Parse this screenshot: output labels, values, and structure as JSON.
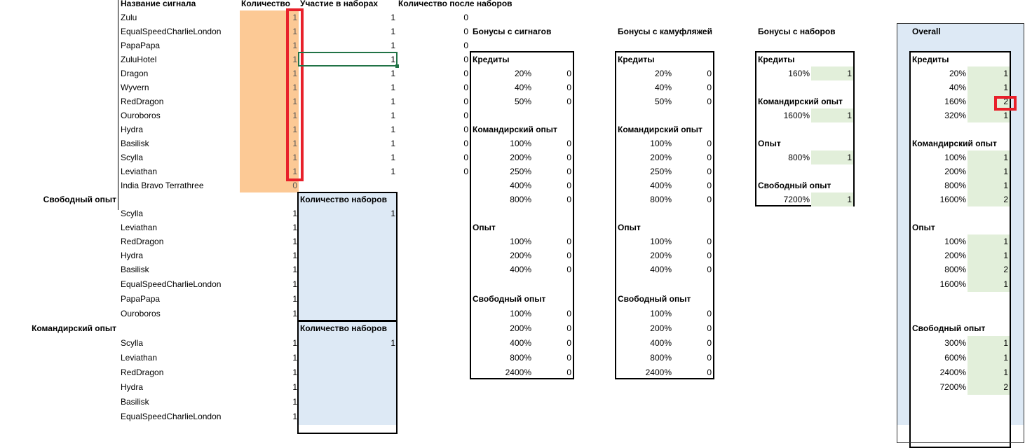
{
  "colors": {
    "orange_fill": "#fcc995",
    "blue_fill": "#dde9f5",
    "green_fill": "#e2efda",
    "highlight_red": "#e8202a",
    "selection_green": "#217346"
  },
  "signals": {
    "headers": {
      "name": "Название сигнала",
      "qty": "Количество",
      "participation": "Участие в наборах",
      "after": "Количество после наборов"
    },
    "rows": [
      {
        "name": "Zulu",
        "qty": "1",
        "participation": "1",
        "after": "0"
      },
      {
        "name": "EqualSpeedCharlieLondon",
        "qty": "1",
        "participation": "1",
        "after": "0"
      },
      {
        "name": "PapaPapa",
        "qty": "1",
        "participation": "1",
        "after": "0"
      },
      {
        "name": "ZuluHotel",
        "qty": "1",
        "participation": "1",
        "after": "0"
      },
      {
        "name": "Dragon",
        "qty": "1",
        "participation": "1",
        "after": "0"
      },
      {
        "name": "Wyvern",
        "qty": "1",
        "participation": "1",
        "after": "0"
      },
      {
        "name": "RedDragon",
        "qty": "1",
        "participation": "1",
        "after": "0"
      },
      {
        "name": "Ouroboros",
        "qty": "1",
        "participation": "1",
        "after": "0"
      },
      {
        "name": "Hydra",
        "qty": "1",
        "participation": "1",
        "after": "0"
      },
      {
        "name": "Basilisk",
        "qty": "1",
        "participation": "1",
        "after": "0"
      },
      {
        "name": "Scylla",
        "qty": "1",
        "participation": "1",
        "after": "0"
      },
      {
        "name": "Leviathan",
        "qty": "1",
        "participation": "1",
        "after": "0"
      },
      {
        "name": "India Bravo Terrathree",
        "qty": "0",
        "participation": "",
        "after": ""
      }
    ]
  },
  "set_groups": [
    {
      "label": "Свободный опыт",
      "sets_header": "Количество наборов",
      "sets_value": "1",
      "rows": [
        {
          "name": "Scylla",
          "qty": "1"
        },
        {
          "name": "Leviathan",
          "qty": "1"
        },
        {
          "name": "RedDragon",
          "qty": "1"
        },
        {
          "name": "Hydra",
          "qty": "1"
        },
        {
          "name": "Basilisk",
          "qty": "1"
        },
        {
          "name": "EqualSpeedCharlieLondon",
          "qty": "1"
        },
        {
          "name": "PapaPapa",
          "qty": "1"
        },
        {
          "name": "Ouroboros",
          "qty": "1"
        }
      ]
    },
    {
      "label": "Командирский опыт",
      "sets_header": "Количество наборов",
      "sets_value": "1",
      "rows": [
        {
          "name": "Scylla",
          "qty": "1"
        },
        {
          "name": "Leviathan",
          "qty": "1"
        },
        {
          "name": "RedDragon",
          "qty": "1"
        },
        {
          "name": "Hydra",
          "qty": "1"
        },
        {
          "name": "Basilisk",
          "qty": "1"
        },
        {
          "name": "EqualSpeedCharlieLondon",
          "qty": "1"
        }
      ]
    }
  ],
  "bonus_tables": [
    {
      "title": "Бонусы с сигнагов",
      "groups": [
        {
          "label": "Кредиты",
          "items": [
            [
              "20%",
              "0"
            ],
            [
              "40%",
              "0"
            ],
            [
              "50%",
              "0"
            ]
          ]
        },
        {
          "label": "Командирский опыт",
          "items": [
            [
              "100%",
              "0"
            ],
            [
              "200%",
              "0"
            ],
            [
              "250%",
              "0"
            ],
            [
              "400%",
              "0"
            ],
            [
              "800%",
              "0"
            ]
          ]
        },
        {
          "label": "Опыт",
          "items": [
            [
              "100%",
              "0"
            ],
            [
              "200%",
              "0"
            ],
            [
              "400%",
              "0"
            ]
          ]
        },
        {
          "label": "Свободный опыт",
          "items": [
            [
              "100%",
              "0"
            ],
            [
              "200%",
              "0"
            ],
            [
              "400%",
              "0"
            ],
            [
              "800%",
              "0"
            ],
            [
              "2400%",
              "0"
            ]
          ]
        }
      ]
    },
    {
      "title": "Бонусы с камуфляжей",
      "groups": [
        {
          "label": "Кредиты",
          "items": [
            [
              "20%",
              "0"
            ],
            [
              "40%",
              "0"
            ],
            [
              "50%",
              "0"
            ]
          ]
        },
        {
          "label": "Командирский опыт",
          "items": [
            [
              "100%",
              "0"
            ],
            [
              "200%",
              "0"
            ],
            [
              "250%",
              "0"
            ],
            [
              "400%",
              "0"
            ],
            [
              "800%",
              "0"
            ]
          ]
        },
        {
          "label": "Опыт",
          "items": [
            [
              "100%",
              "0"
            ],
            [
              "200%",
              "0"
            ],
            [
              "400%",
              "0"
            ]
          ]
        },
        {
          "label": "Свободный опыт",
          "items": [
            [
              "100%",
              "0"
            ],
            [
              "200%",
              "0"
            ],
            [
              "400%",
              "0"
            ],
            [
              "800%",
              "0"
            ],
            [
              "2400%",
              "0"
            ]
          ]
        }
      ]
    },
    {
      "title": "Бонусы с наборов",
      "groups": [
        {
          "label": "Кредиты",
          "items": [
            [
              "160%",
              "1"
            ]
          ]
        },
        {
          "label": "Командирский опыт",
          "items": [
            [
              "1600%",
              "1"
            ]
          ]
        },
        {
          "label": "Опыт",
          "items": [
            [
              "800%",
              "1"
            ]
          ]
        },
        {
          "label": "Свободный опыт",
          "items": [
            [
              "7200%",
              "1"
            ]
          ]
        }
      ]
    },
    {
      "title": "Overall",
      "groups": [
        {
          "label": "Кредиты",
          "items": [
            [
              "20%",
              "1"
            ],
            [
              "40%",
              "1"
            ],
            [
              "160%",
              "2"
            ],
            [
              "320%",
              "1"
            ]
          ]
        },
        {
          "label": "Командирский опыт",
          "items": [
            [
              "100%",
              "1"
            ],
            [
              "200%",
              "1"
            ],
            [
              "800%",
              "1"
            ],
            [
              "1600%",
              "2"
            ]
          ]
        },
        {
          "label": "Опыт",
          "items": [
            [
              "100%",
              "1"
            ],
            [
              "200%",
              "1"
            ],
            [
              "800%",
              "2"
            ],
            [
              "1600%",
              "1"
            ]
          ]
        },
        {
          "label": "Свободный опыт",
          "items": [
            [
              "300%",
              "1"
            ],
            [
              "600%",
              "1"
            ],
            [
              "2400%",
              "1"
            ],
            [
              "7200%",
              "2"
            ]
          ]
        }
      ]
    }
  ]
}
